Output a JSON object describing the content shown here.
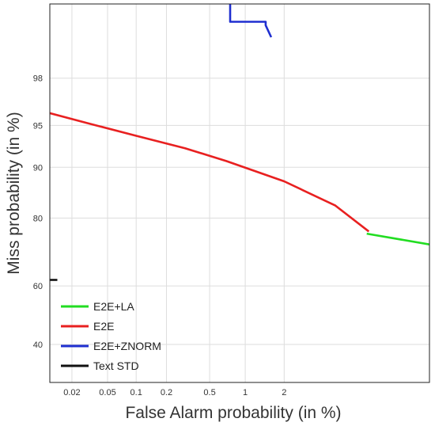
{
  "chart_data": {
    "type": "line",
    "title": "",
    "xlabel": "False Alarm probability (in %)",
    "ylabel": "Miss probability (in %)",
    "x_scale": "normal-deviate (DET)",
    "y_scale": "normal-deviate (DET)",
    "xlim": [
      0.011,
      15
    ],
    "ylim": [
      28,
      99.65
    ],
    "xticks": [
      0.02,
      0.05,
      0.1,
      0.2,
      0.5,
      1,
      2
    ],
    "xtick_labels": [
      "0.02",
      "0.05",
      "0.1",
      "0.2",
      "0.5",
      "1",
      "2"
    ],
    "yticks": [
      40,
      60,
      80,
      90,
      95,
      98
    ],
    "ytick_labels": [
      "40",
      "60",
      "80",
      "90",
      "95",
      "98"
    ],
    "grid": true,
    "legend_position": "bottom-left",
    "series": [
      {
        "name": "E2E+LA",
        "color": "#22dd22",
        "x": [
          7.0,
          15.0
        ],
        "y": [
          76.0,
          73.0
        ]
      },
      {
        "name": "E2E",
        "color": "#e82020",
        "x": [
          0.011,
          0.03,
          0.1,
          0.3,
          0.7,
          2.0,
          4.5,
          7.2
        ],
        "y": [
          96.0,
          95.2,
          94.0,
          92.6,
          90.9,
          87.7,
          82.9,
          76.6
        ]
      },
      {
        "name": "E2E+ZNORM",
        "color": "#1f2fd0",
        "x": [
          0.75,
          0.75,
          1.45,
          1.45,
          1.6
        ],
        "y": [
          99.65,
          99.45,
          99.45,
          99.4,
          99.2
        ]
      },
      {
        "name": "Text STD",
        "color": "#111111",
        "x": [
          0.011,
          0.0135
        ],
        "y": [
          62.0,
          62.0
        ]
      }
    ]
  }
}
